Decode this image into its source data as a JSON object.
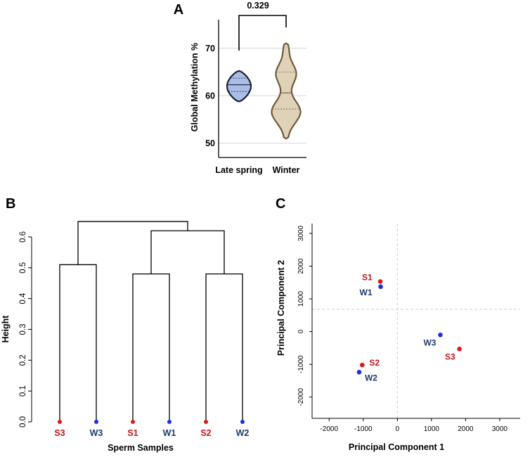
{
  "panels": {
    "a": {
      "label": "A"
    },
    "b": {
      "label": "B"
    },
    "c": {
      "label": "C"
    }
  },
  "colors": {
    "late_spring_fill": "#a9bde6",
    "late_spring_line": "#1a2238",
    "winter_fill": "#e0d2b8",
    "winter_line": "#6e5a3a",
    "spring_red": "#e0181b",
    "winter_blue": "#1631e6",
    "label_red": "#c0161b",
    "label_blue": "#1f3a6e"
  },
  "chart_data": [
    {
      "id": "violin",
      "type": "violin",
      "ylabel": "Global Methylation %",
      "categories": [
        "Late spring",
        "Winter"
      ],
      "yticks": [
        50,
        60,
        70
      ],
      "ylim": [
        47,
        76
      ],
      "grid": true,
      "pvalue": "0.329",
      "series": [
        {
          "name": "Late spring",
          "min": 58.8,
          "max": 65.2,
          "q1": 60.9,
          "median": 62.3,
          "q3": 63.7
        },
        {
          "name": "Winter",
          "min": 51.0,
          "max": 71.0,
          "q1": 57.2,
          "median": 60.6,
          "q3": 65.0
        }
      ]
    },
    {
      "id": "dendrogram",
      "type": "dendrogram",
      "xlabel": "Sperm Samples",
      "ylabel": "Height",
      "yticks": [
        "0.0",
        "0.1",
        "0.2",
        "0.3",
        "0.4",
        "0.5",
        "0.6"
      ],
      "ylim": [
        0,
        0.66
      ],
      "leaves": [
        {
          "name": "S3",
          "group": "spring"
        },
        {
          "name": "W3",
          "group": "winter"
        },
        {
          "name": "S1",
          "group": "spring"
        },
        {
          "name": "W1",
          "group": "winter"
        },
        {
          "name": "S2",
          "group": "spring"
        },
        {
          "name": "W2",
          "group": "winter"
        }
      ],
      "merges": [
        {
          "left": "S3",
          "right": "W3",
          "height": 0.51
        },
        {
          "left": "S1",
          "right": "W1",
          "height": 0.48
        },
        {
          "left": "S2",
          "right": "W2",
          "height": 0.48
        },
        {
          "left": "S1W1",
          "right": "S2W2",
          "height": 0.62
        },
        {
          "left": "S3W3",
          "right": "rest",
          "height": 0.65
        }
      ]
    },
    {
      "id": "pca",
      "type": "scatter",
      "xlabel": "Principal Component 1",
      "ylabel": "Principal Component 2",
      "xticks": [
        "-2000",
        "-1000",
        "0",
        "1000",
        "2000",
        "3000"
      ],
      "yticks": [
        "-2000",
        "-1000",
        "0",
        "1000",
        "2000",
        "3000"
      ],
      "xlim": [
        -2500,
        3600
      ],
      "ylim": [
        -2650,
        3300
      ],
      "crosshair": {
        "x": 0,
        "y": 680
      },
      "points": [
        {
          "name": "S1",
          "x": -500,
          "y": 1530,
          "group": "spring"
        },
        {
          "name": "W1",
          "x": -490,
          "y": 1370,
          "group": "winter"
        },
        {
          "name": "S2",
          "x": -1030,
          "y": -1020,
          "group": "spring"
        },
        {
          "name": "W2",
          "x": -1120,
          "y": -1240,
          "group": "winter"
        },
        {
          "name": "W3",
          "x": 1260,
          "y": -100,
          "group": "winter"
        },
        {
          "name": "S3",
          "x": 1820,
          "y": -530,
          "group": "spring"
        }
      ]
    }
  ]
}
